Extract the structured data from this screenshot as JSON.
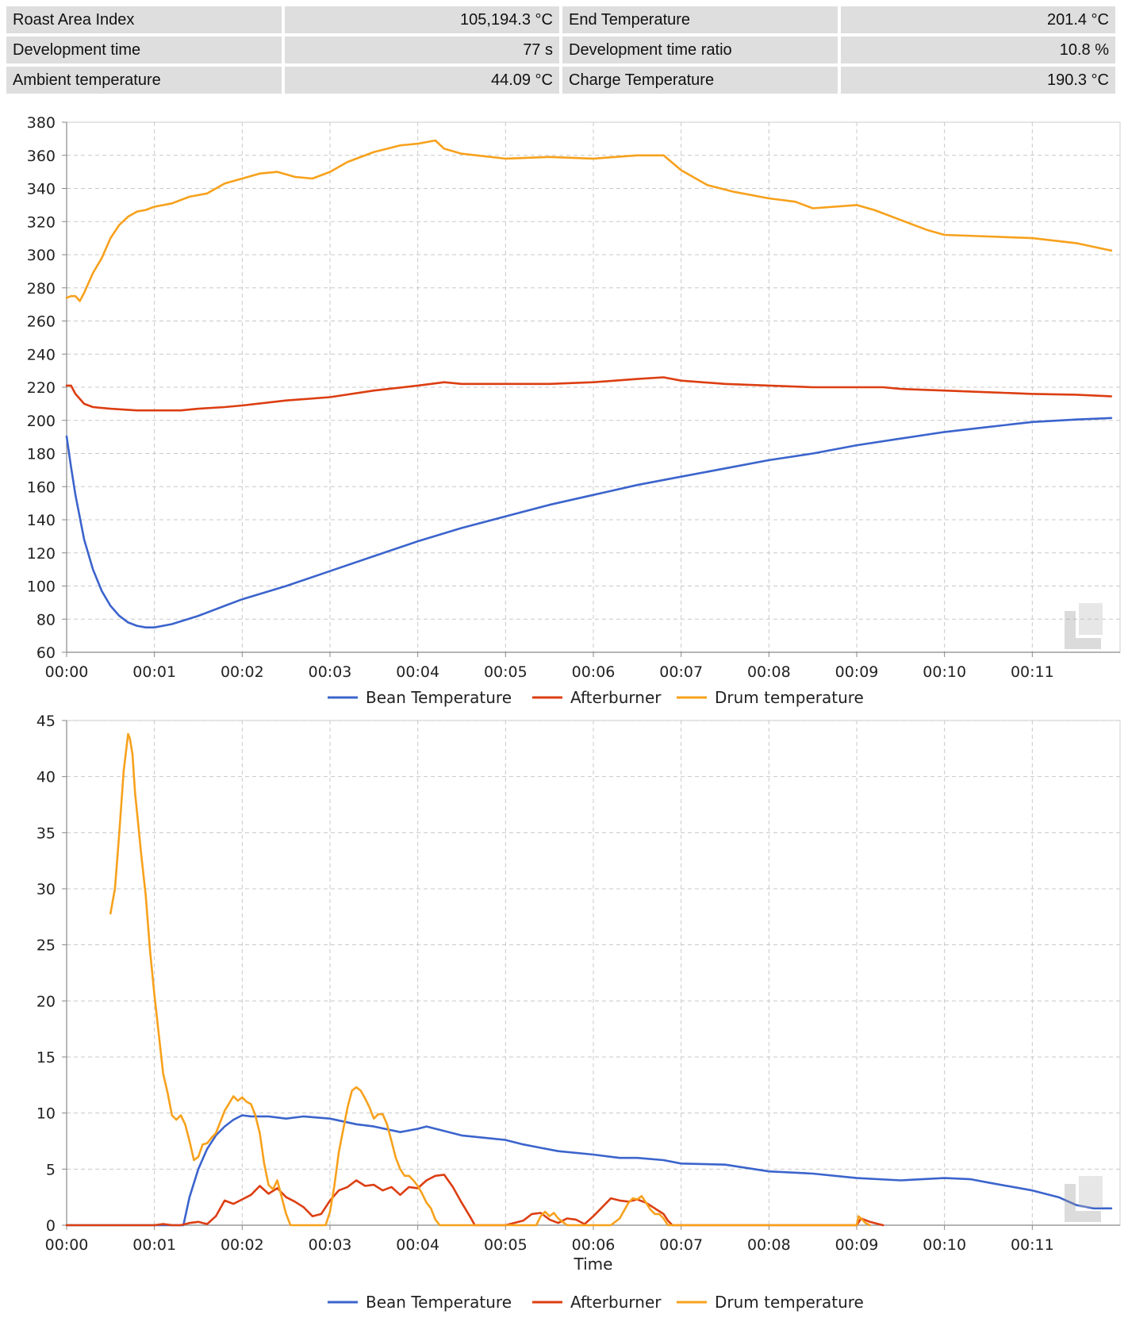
{
  "stats": [
    {
      "label": "Roast Area Index",
      "value": "105,194.3 °C"
    },
    {
      "label": "End Temperature",
      "value": "201.4 °C"
    },
    {
      "label": "Development time",
      "value": "77 s"
    },
    {
      "label": "Development time ratio",
      "value": "10.8 %"
    },
    {
      "label": "Ambient temperature",
      "value": "44.09 °C"
    },
    {
      "label": "Charge Temperature",
      "value": "190.3 °C"
    }
  ],
  "colors": {
    "bean": "#3b64cc",
    "afterburner": "#dc3e12",
    "drum": "#f7a11c"
  },
  "chart_data": [
    {
      "type": "line",
      "title": "",
      "xlabel": "",
      "ylabel": "",
      "xlim": [
        0,
        12.0
      ],
      "ylim": [
        60,
        380
      ],
      "yticks": [
        60,
        80,
        100,
        120,
        140,
        160,
        180,
        200,
        220,
        240,
        260,
        280,
        300,
        320,
        340,
        360,
        380
      ],
      "xticks": [
        0,
        1,
        2,
        3,
        4,
        5,
        6,
        7,
        8,
        9,
        10,
        11
      ],
      "xtick_labels": [
        "00:00",
        "00:01",
        "00:02",
        "00:03",
        "00:04",
        "00:05",
        "00:06",
        "00:07",
        "00:08",
        "00:09",
        "00:10",
        "00:11"
      ],
      "grid": true,
      "legend": "bottom-center",
      "series": [
        {
          "name": "Bean Temperature",
          "color": "bean",
          "x": [
            0,
            0.05,
            0.1,
            0.2,
            0.3,
            0.4,
            0.5,
            0.6,
            0.7,
            0.8,
            0.9,
            1.0,
            1.2,
            1.5,
            1.8,
            2.0,
            2.5,
            3.0,
            3.5,
            4.0,
            4.5,
            5.0,
            5.5,
            6.0,
            6.5,
            7.0,
            7.5,
            8.0,
            8.5,
            9.0,
            9.5,
            10.0,
            10.5,
            11.0,
            11.5,
            11.9
          ],
          "y": [
            190.3,
            172,
            155,
            128,
            110,
            97,
            88,
            82,
            78,
            76,
            75,
            75,
            77,
            82,
            88,
            92,
            100,
            109,
            118,
            127,
            135,
            142,
            149,
            155,
            161,
            166,
            171,
            176,
            180,
            185,
            189,
            193,
            196,
            199,
            200.5,
            201.4
          ]
        },
        {
          "name": "Afterburner",
          "color": "afterburner",
          "x": [
            0,
            0.05,
            0.1,
            0.2,
            0.3,
            0.5,
            0.8,
            1.0,
            1.3,
            1.5,
            1.8,
            2.0,
            2.5,
            3.0,
            3.5,
            4.0,
            4.3,
            4.5,
            5.0,
            5.5,
            6.0,
            6.5,
            6.8,
            7.0,
            7.5,
            8.0,
            8.5,
            9.0,
            9.3,
            9.5,
            10.0,
            10.5,
            11.0,
            11.5,
            11.9
          ],
          "y": [
            221,
            221,
            216,
            210,
            208,
            207,
            206,
            206,
            206,
            207,
            208,
            209,
            212,
            214,
            218,
            221,
            223,
            222,
            222,
            222,
            223,
            225,
            226,
            224,
            222,
            221,
            220,
            220,
            220,
            219,
            218,
            217,
            216,
            215.5,
            214.5
          ]
        },
        {
          "name": "Drum temperature",
          "color": "drum",
          "x": [
            0,
            0.05,
            0.1,
            0.15,
            0.2,
            0.3,
            0.4,
            0.5,
            0.6,
            0.7,
            0.8,
            0.9,
            1.0,
            1.2,
            1.4,
            1.6,
            1.8,
            2.0,
            2.2,
            2.4,
            2.6,
            2.8,
            3.0,
            3.2,
            3.5,
            3.8,
            4.0,
            4.2,
            4.3,
            4.5,
            5.0,
            5.5,
            6.0,
            6.5,
            6.8,
            7.0,
            7.3,
            7.6,
            8.0,
            8.3,
            8.5,
            9.0,
            9.2,
            9.5,
            9.8,
            10.0,
            10.5,
            11.0,
            11.5,
            11.9
          ],
          "y": [
            274,
            275,
            275,
            272,
            277,
            289,
            298,
            310,
            318,
            323,
            326,
            327,
            329,
            331,
            335,
            337,
            343,
            346,
            349,
            350,
            347,
            346,
            350,
            356,
            362,
            366,
            367,
            369,
            364,
            361,
            358,
            359,
            358,
            360,
            360,
            351,
            342,
            338,
            334,
            332,
            328,
            330,
            327,
            321,
            315,
            312,
            311,
            310,
            307,
            302.5
          ]
        }
      ]
    },
    {
      "type": "line",
      "title": "",
      "xlabel": "Time",
      "ylabel": "",
      "xlim": [
        0,
        12.0
      ],
      "ylim": [
        0,
        45
      ],
      "yticks": [
        0,
        5,
        10,
        15,
        20,
        25,
        30,
        35,
        40,
        45
      ],
      "xticks": [
        0,
        1,
        2,
        3,
        4,
        5,
        6,
        7,
        8,
        9,
        10,
        11
      ],
      "xtick_labels": [
        "00:00",
        "00:01",
        "00:02",
        "00:03",
        "00:04",
        "00:05",
        "00:06",
        "00:07",
        "00:08",
        "00:09",
        "00:10",
        "00:11"
      ],
      "grid": true,
      "legend": "bottom-center",
      "series": [
        {
          "name": "Bean Temperature",
          "color": "bean",
          "x": [
            0,
            1.33,
            1.4,
            1.5,
            1.6,
            1.7,
            1.8,
            1.9,
            2.0,
            2.1,
            2.3,
            2.5,
            2.7,
            3.0,
            3.3,
            3.5,
            3.8,
            4.0,
            4.1,
            4.3,
            4.5,
            5.0,
            5.2,
            5.4,
            5.6,
            6.0,
            6.3,
            6.5,
            6.8,
            7.0,
            7.5,
            8.0,
            8.5,
            9.0,
            9.5,
            10.0,
            10.3,
            10.5,
            11.0,
            11.3,
            11.5,
            11.7,
            11.8,
            11.9
          ],
          "y": [
            0,
            0,
            2.5,
            5,
            6.8,
            8,
            8.8,
            9.4,
            9.8,
            9.7,
            9.7,
            9.5,
            9.7,
            9.5,
            9.0,
            8.8,
            8.3,
            8.6,
            8.8,
            8.4,
            8.0,
            7.6,
            7.2,
            6.9,
            6.6,
            6.3,
            6.0,
            6.0,
            5.8,
            5.5,
            5.4,
            4.8,
            4.6,
            4.2,
            4.0,
            4.2,
            4.1,
            3.8,
            3.1,
            2.5,
            1.8,
            1.5,
            1.5,
            1.5
          ]
        },
        {
          "name": "Afterburner",
          "color": "afterburner",
          "x": [
            0,
            1.0,
            1.1,
            1.2,
            1.3,
            1.4,
            1.5,
            1.6,
            1.7,
            1.8,
            1.9,
            2.0,
            2.1,
            2.2,
            2.3,
            2.4,
            2.5,
            2.6,
            2.7,
            2.8,
            2.9,
            3.0,
            3.1,
            3.2,
            3.3,
            3.4,
            3.5,
            3.6,
            3.7,
            3.8,
            3.9,
            4.0,
            4.1,
            4.2,
            4.3,
            4.4,
            4.5,
            4.6,
            4.65,
            5.0,
            5.2,
            5.3,
            5.4,
            5.5,
            5.6,
            5.7,
            5.8,
            5.9,
            6.0,
            6.1,
            6.2,
            6.3,
            6.4,
            6.5,
            6.6,
            6.7,
            6.8,
            6.85,
            6.9,
            9.0,
            9.05,
            9.15,
            9.25,
            9.3
          ],
          "y": [
            0,
            0,
            0.1,
            0,
            0,
            0.2,
            0.3,
            0.1,
            0.8,
            2.2,
            1.9,
            2.3,
            2.7,
            3.5,
            2.8,
            3.3,
            2.5,
            2.1,
            1.6,
            0.8,
            1.0,
            2.2,
            3.1,
            3.4,
            4.0,
            3.5,
            3.6,
            3.1,
            3.4,
            2.7,
            3.4,
            3.3,
            4.0,
            4.4,
            4.5,
            3.4,
            2.0,
            0.7,
            0,
            0,
            0.4,
            1.0,
            1.1,
            0.5,
            0.2,
            0.6,
            0.5,
            0.1,
            0.8,
            1.6,
            2.4,
            2.2,
            2.1,
            2.3,
            2.0,
            1.5,
            1.0,
            0.4,
            0,
            0,
            0.6,
            0.3,
            0.1,
            0
          ]
        },
        {
          "name": "Drum temperature",
          "color": "drum",
          "x": [
            0.5,
            0.55,
            0.6,
            0.65,
            0.7,
            0.72,
            0.75,
            0.78,
            0.8,
            0.85,
            0.9,
            0.95,
            1.0,
            1.05,
            1.1,
            1.15,
            1.2,
            1.25,
            1.3,
            1.35,
            1.4,
            1.45,
            1.5,
            1.55,
            1.6,
            1.65,
            1.7,
            1.75,
            1.8,
            1.9,
            1.95,
            2.0,
            2.05,
            2.1,
            2.15,
            2.2,
            2.25,
            2.3,
            2.35,
            2.4,
            2.45,
            2.5,
            2.55,
            2.6,
            2.65,
            2.7,
            2.75,
            2.8,
            2.95,
            3.0,
            3.05,
            3.1,
            3.15,
            3.2,
            3.25,
            3.3,
            3.35,
            3.4,
            3.45,
            3.5,
            3.55,
            3.6,
            3.65,
            3.7,
            3.75,
            3.8,
            3.85,
            3.9,
            3.95,
            4.0,
            4.05,
            4.1,
            4.15,
            4.2,
            4.25,
            4.3,
            4.35,
            4.4,
            5.35,
            5.4,
            5.45,
            5.5,
            5.55,
            5.6,
            5.65,
            5.7,
            6.2,
            6.3,
            6.4,
            6.45,
            6.5,
            6.55,
            6.6,
            6.65,
            6.7,
            6.75,
            6.8,
            6.85,
            9.0,
            9.02,
            9.05,
            9.1,
            9.15
          ],
          "y": [
            27.8,
            30,
            35,
            40.5,
            43.8,
            43.4,
            42,
            38.5,
            37,
            33,
            29.5,
            24.5,
            20.5,
            17,
            13.5,
            11.8,
            9.8,
            9.4,
            9.8,
            9.0,
            7.5,
            5.8,
            6.1,
            7.2,
            7.3,
            7.8,
            8.2,
            9.2,
            10.2,
            11.5,
            11.1,
            11.4,
            11.0,
            10.8,
            9.8,
            8.2,
            5.5,
            3.6,
            3.2,
            4.0,
            2.5,
            1.0,
            0,
            0,
            0,
            0,
            0,
            0,
            0,
            1.2,
            3.5,
            6.5,
            8.5,
            10.5,
            12.0,
            12.3,
            12.0,
            11.3,
            10.5,
            9.5,
            9.9,
            9.9,
            9.0,
            7.5,
            6.0,
            5.0,
            4.4,
            4.4,
            4.0,
            3.5,
            2.8,
            2.0,
            1.5,
            0.5,
            0,
            0,
            0,
            0,
            0,
            0.8,
            1.2,
            0.8,
            1.1,
            0.6,
            0.3,
            0,
            0,
            0.6,
            2.0,
            2.4,
            2.3,
            2.6,
            2.0,
            1.4,
            1.0,
            1.0,
            0.6,
            0,
            0,
            0.8,
            0.6,
            0.2,
            0
          ]
        }
      ]
    }
  ]
}
